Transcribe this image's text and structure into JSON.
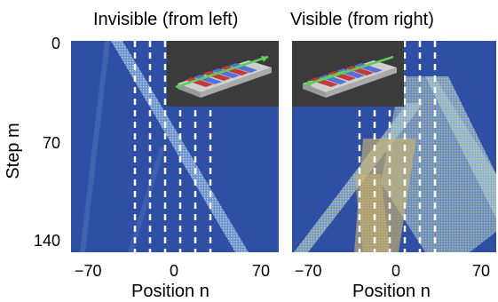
{
  "figure": {
    "left_title": "Invisible (from left)",
    "right_title": "Visible (from right)",
    "ylabel": "Step m",
    "xlabel": "Position n",
    "y_ticks": [
      "0",
      "70",
      "140"
    ],
    "x_ticks": [
      "−70",
      "0",
      "70"
    ]
  },
  "colors": {
    "background_field": "#2f4fa4",
    "beam_light": "#9ec9ef",
    "beam_hot": "#e0d26a",
    "inset_bg": "#3b3b3b",
    "dashed_lines": "#ffffff"
  }
}
